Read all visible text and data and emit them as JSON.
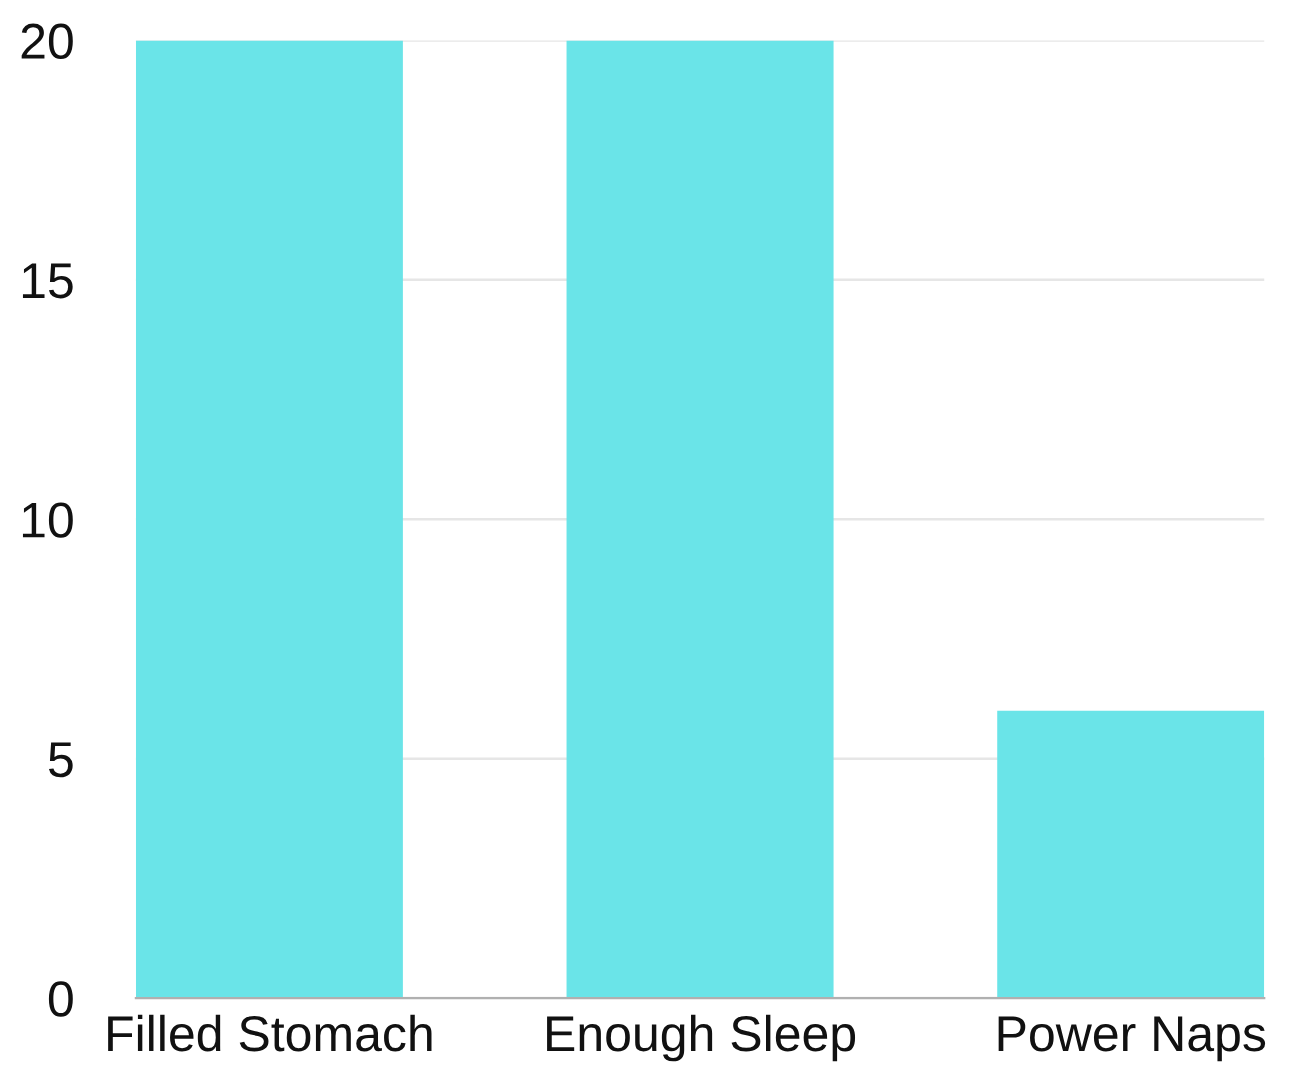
{
  "chart_data": {
    "type": "bar",
    "categories": [
      "Filled Stomach",
      "Enough Sleep",
      "Power Naps"
    ],
    "values": [
      20,
      20,
      6
    ],
    "color": "#6ae4e8",
    "ylim": [
      0,
      20
    ],
    "yticks": [
      0,
      5,
      10,
      15,
      20
    ],
    "grid": "y"
  }
}
